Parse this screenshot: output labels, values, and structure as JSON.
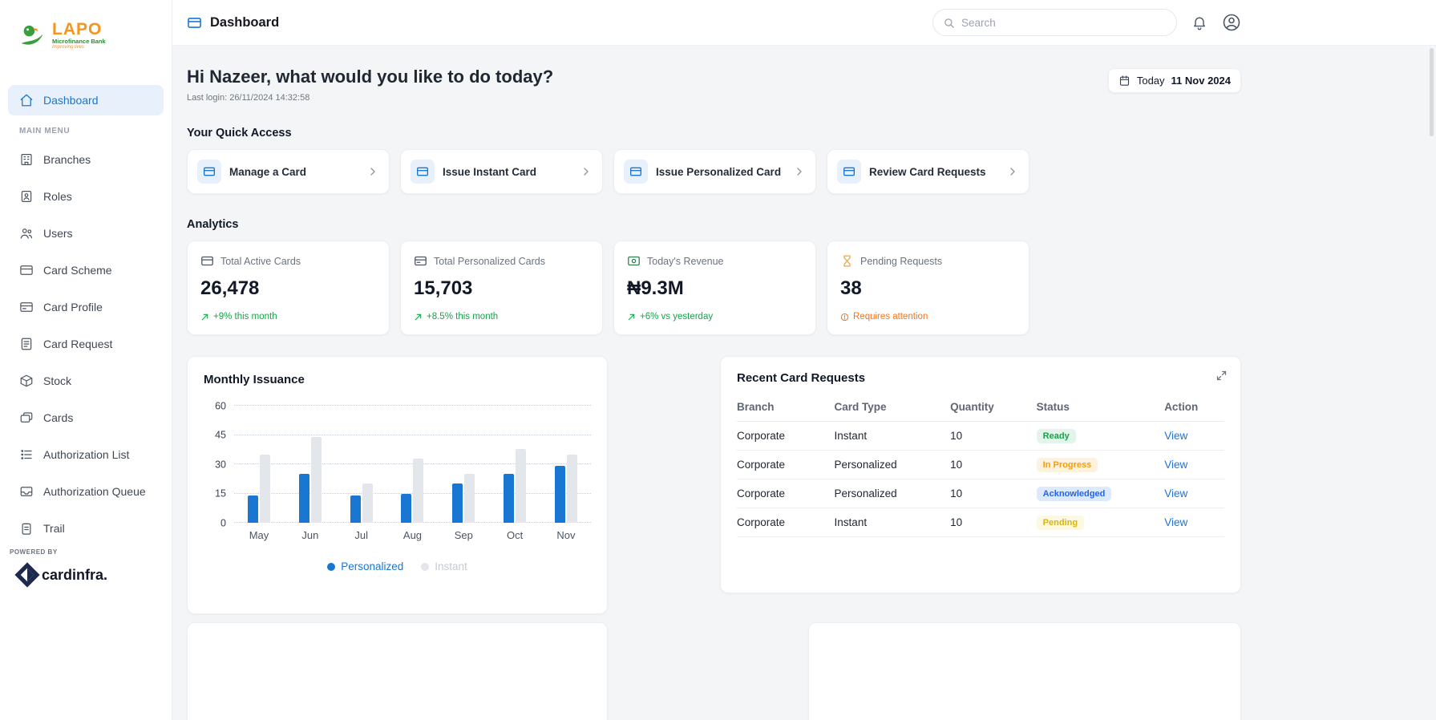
{
  "colors": {
    "primary_blue": "#1976d2",
    "link_blue": "#1a73e8",
    "success_green": "#16a34a",
    "warning_orange": "#f97316",
    "pending_yellow": "#d7b410",
    "acknowledged_blue": "#2563eb",
    "brand_orange": "#f7941d",
    "brand_green": "#2e8b3a",
    "cardinfra_navy": "#1d2a4d",
    "sidebar_active_bg": "#e8f1fb",
    "content_bg": "#f4f5f7"
  },
  "brand": {
    "name": "LAPO",
    "subtitle": "Microfinance Bank",
    "tagline": "Improving lives",
    "powered_by": "POWERED BY",
    "powered_logo": "cardinfra."
  },
  "sidebar": {
    "active_item": "Dashboard",
    "section_label": "MAIN MENU",
    "items": [
      {
        "label": "Branches"
      },
      {
        "label": "Roles"
      },
      {
        "label": "Users"
      },
      {
        "label": "Card Scheme"
      },
      {
        "label": "Card Profile"
      },
      {
        "label": "Card Request"
      },
      {
        "label": "Stock"
      },
      {
        "label": "Cards"
      },
      {
        "label": "Authorization List"
      },
      {
        "label": "Authorization Queue"
      },
      {
        "label": "Trail"
      }
    ]
  },
  "topbar": {
    "title": "Dashboard",
    "search_placeholder": "Search"
  },
  "header": {
    "greeting": "Hi Nazeer, what would you like to do today?",
    "last_login": "Last login: 26/11/2024 14:32:58",
    "date_label": "Today",
    "date_value": "11 Nov 2024"
  },
  "quick_access": {
    "title": "Your Quick Access",
    "items": [
      {
        "label": "Manage a Card"
      },
      {
        "label": "Issue Instant Card"
      },
      {
        "label": "Issue Personalized Card"
      },
      {
        "label": "Review Card Requests"
      }
    ]
  },
  "analytics": {
    "title": "Analytics",
    "cards": [
      {
        "label": "Total Active Cards",
        "value": "26,478",
        "trend": "+9% this month",
        "trend_type": "positive"
      },
      {
        "label": "Total Personalized Cards",
        "value": "15,703",
        "trend": "+8.5% this month",
        "trend_type": "positive"
      },
      {
        "label": "Today's Revenue",
        "value": "₦9.3M",
        "trend": "+6% vs yesterday",
        "trend_type": "positive"
      },
      {
        "label": "Pending Requests",
        "value": "38",
        "trend": "Requires attention",
        "trend_type": "warning"
      }
    ]
  },
  "chart_data": {
    "type": "bar",
    "title": "Monthly Issuance",
    "categories": [
      "May",
      "Jun",
      "Jul",
      "Aug",
      "Sep",
      "Oct",
      "Nov"
    ],
    "series": [
      {
        "name": "Personalized",
        "color": "#1976d2",
        "label_color": "#1976d2",
        "values": [
          14,
          25,
          14,
          15,
          20,
          25,
          29
        ]
      },
      {
        "name": "Instant",
        "color": "#e3e6ea",
        "label_color": "#c4cad1",
        "values": [
          35,
          44,
          20,
          33,
          25,
          38,
          35
        ]
      }
    ],
    "ylim": [
      0,
      60
    ],
    "yticks": [
      0,
      15,
      30,
      45,
      60
    ],
    "grid": "dotted-horizontal",
    "legend_position": "bottom"
  },
  "requests": {
    "title": "Recent Card Requests",
    "columns": [
      "Branch",
      "Card Type",
      "Quantity",
      "Status",
      "Action"
    ],
    "rows": [
      {
        "branch": "Corporate",
        "card_type": "Instant",
        "quantity": "10",
        "status": "Ready",
        "status_class": "ready",
        "action": "View"
      },
      {
        "branch": "Corporate",
        "card_type": "Personalized",
        "quantity": "10",
        "status": "In Progress",
        "status_class": "in-progress",
        "action": "View"
      },
      {
        "branch": "Corporate",
        "card_type": "Personalized",
        "quantity": "10",
        "status": "Acknowledged",
        "status_class": "acknowledged",
        "action": "View"
      },
      {
        "branch": "Corporate",
        "card_type": "Instant",
        "quantity": "10",
        "status": "Pending",
        "status_class": "pending",
        "action": "View"
      }
    ]
  }
}
